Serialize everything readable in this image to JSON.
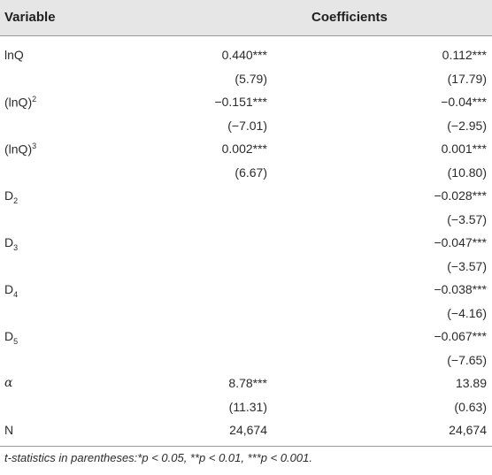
{
  "header": {
    "variable": "Variable",
    "coefficients": "Coefficients"
  },
  "rows": [
    {
      "var": "lnQ",
      "c1": "0.440***",
      "c2": "0.112***"
    },
    {
      "var": "",
      "c1": "(5.79)",
      "c2": "(17.79)"
    },
    {
      "var": "(lnQ)2",
      "c1": "−0.151***",
      "c2": "−0.04***"
    },
    {
      "var": "",
      "c1": "(−7.01)",
      "c2": "(−2.95)"
    },
    {
      "var": "(lnQ)3",
      "c1": "0.002***",
      "c2": "0.001***"
    },
    {
      "var": "",
      "c1": "(6.67)",
      "c2": "(10.80)"
    },
    {
      "var": "D2",
      "c1": "",
      "c2": "−0.028***"
    },
    {
      "var": "",
      "c1": "",
      "c2": "(−3.57)"
    },
    {
      "var": "D3",
      "c1": "",
      "c2": "−0.047***"
    },
    {
      "var": "",
      "c1": "",
      "c2": "(−3.57)"
    },
    {
      "var": "D4",
      "c1": "",
      "c2": "−0.038***"
    },
    {
      "var": "",
      "c1": "",
      "c2": "(−4.16)"
    },
    {
      "var": "D5",
      "c1": "",
      "c2": "−0.067***"
    },
    {
      "var": "",
      "c1": "",
      "c2": "(−7.65)"
    },
    {
      "var": "α",
      "c1": "8.78***",
      "c2": "13.89"
    },
    {
      "var": "",
      "c1": "(11.31)",
      "c2": "(0.63)"
    },
    {
      "var": "N",
      "c1": "24,674",
      "c2": "24,674"
    }
  ],
  "footnote": "t-statistics in parentheses:*p < 0.05, **p < 0.01, ***p < 0.001."
}
